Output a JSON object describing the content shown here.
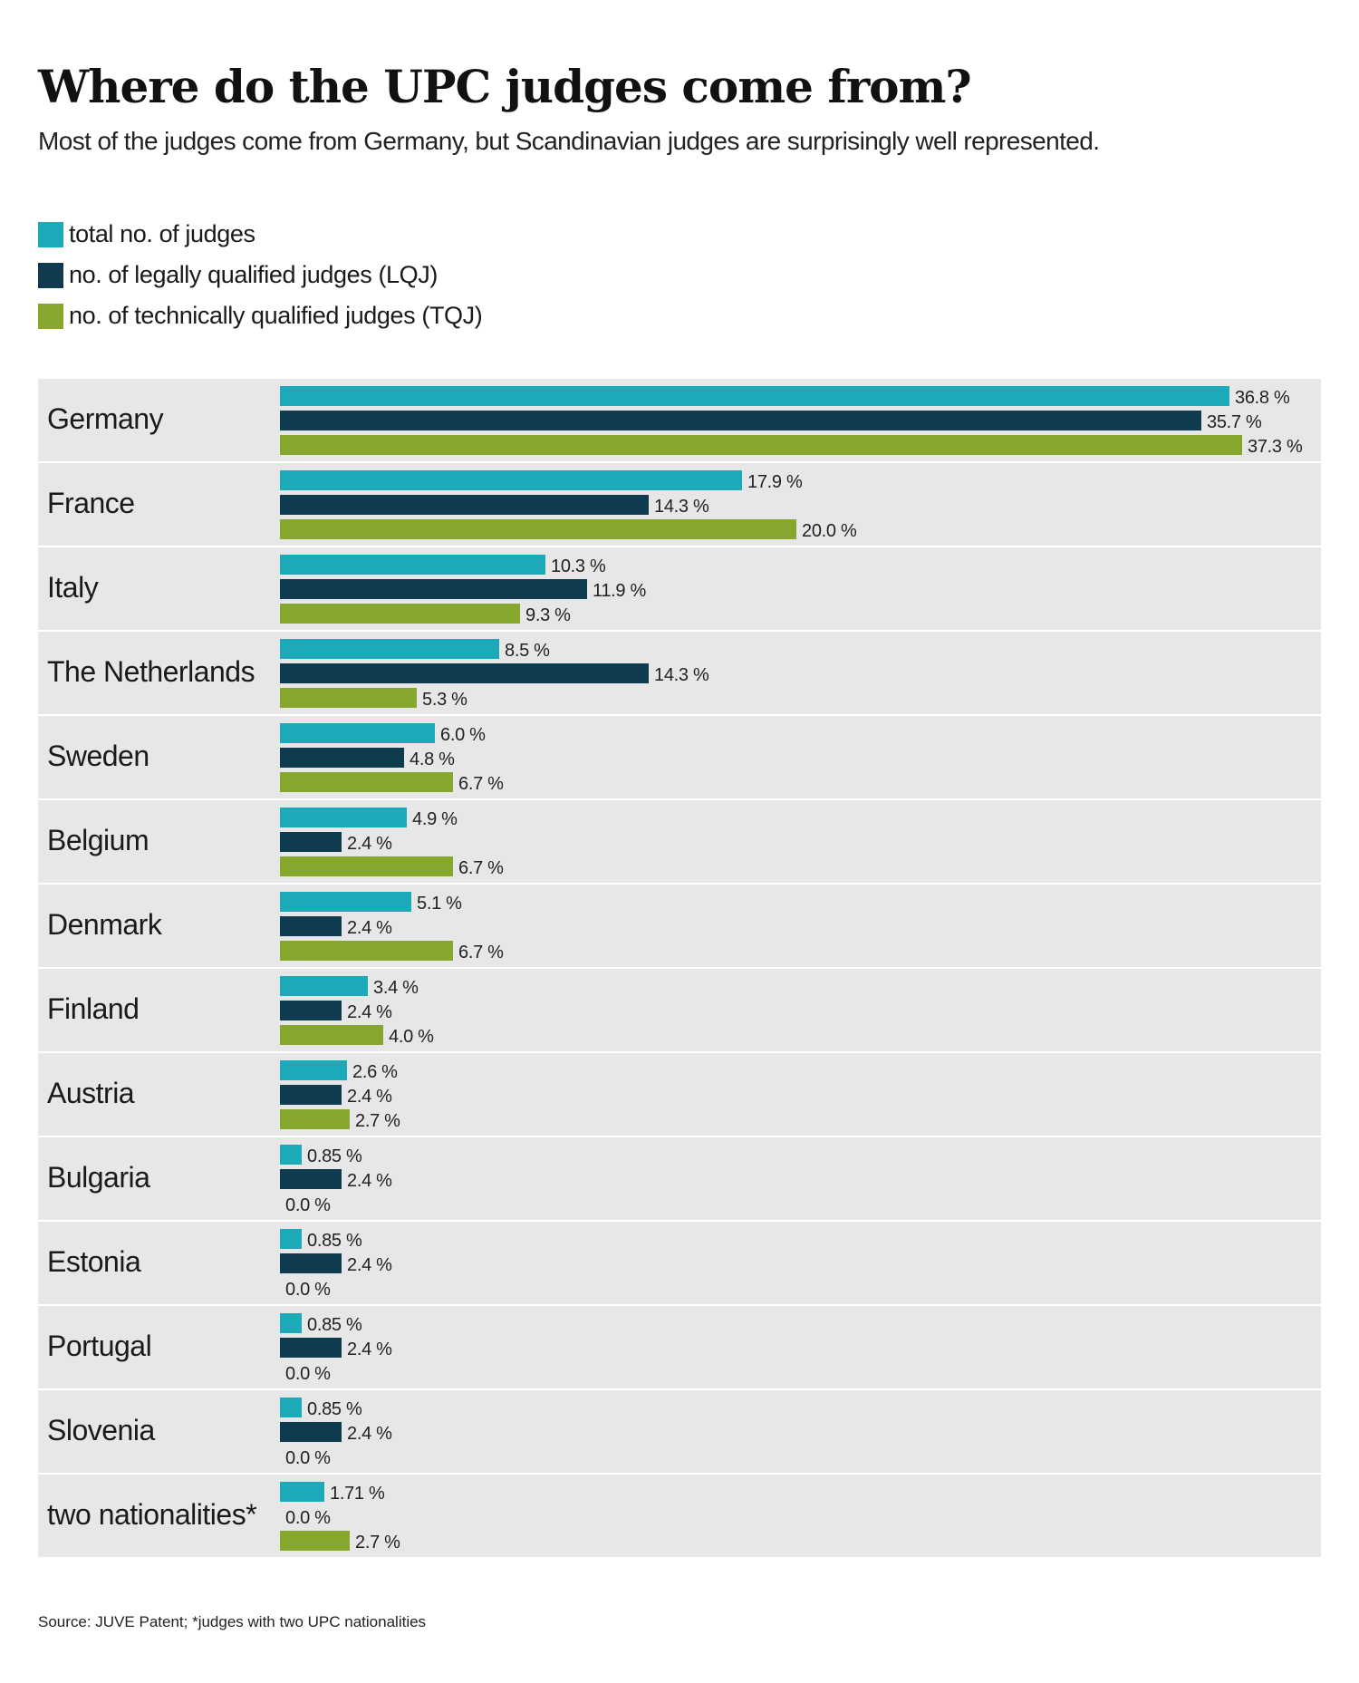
{
  "title": "Where do the UPC judges come from?",
  "subtitle": "Most of the judges come from Germany, but Scandinavian judges are surprisingly well represented.",
  "colors": {
    "total": "#1ca9b8",
    "lqj": "#0e3b4f",
    "tqj": "#86a72d",
    "row_bg": "#e7e7e7"
  },
  "legend": [
    {
      "key": "total",
      "label": "total no. of judges"
    },
    {
      "key": "lqj",
      "label": "no. of legally qualified judges (LQJ)"
    },
    {
      "key": "tqj",
      "label": "no. of technically qualified judges (TQJ)"
    }
  ],
  "source": "Source: JUVE Patent; *judges with two UPC nationalities",
  "chart_data": {
    "type": "bar",
    "orientation": "horizontal",
    "title": "Where do the UPC judges come from?",
    "xlim": [
      0,
      40
    ],
    "categories": [
      "Germany",
      "France",
      "Italy",
      "The Netherlands",
      "Sweden",
      "Belgium",
      "Denmark",
      "Finland",
      "Austria",
      "Bulgaria",
      "Estonia",
      "Portugal",
      "Slovenia",
      "two nationalities*"
    ],
    "series": [
      {
        "key": "total",
        "name": "total no. of judges",
        "values": [
          36.8,
          17.9,
          10.3,
          8.5,
          6.0,
          4.9,
          5.1,
          3.4,
          2.6,
          0.85,
          0.85,
          0.85,
          0.85,
          1.71
        ],
        "labels": [
          "36.8 %",
          "17.9 %",
          "10.3 %",
          "8.5 %",
          "6.0 %",
          "4.9 %",
          "5.1 %",
          "3.4 %",
          "2.6 %",
          "0.85 %",
          "0.85 %",
          "0.85 %",
          "0.85 %",
          "1.71 %"
        ]
      },
      {
        "key": "lqj",
        "name": "no. of legally qualified judges (LQJ)",
        "values": [
          35.7,
          14.3,
          11.9,
          14.3,
          4.8,
          2.4,
          2.4,
          2.4,
          2.4,
          2.4,
          2.4,
          2.4,
          2.4,
          0.0
        ],
        "labels": [
          "35.7 %",
          "14.3 %",
          "11.9 %",
          "14.3 %",
          "4.8 %",
          "2.4 %",
          "2.4 %",
          "2.4 %",
          "2.4 %",
          "2.4 %",
          "2.4 %",
          "2.4 %",
          "2.4 %",
          "0.0 %"
        ]
      },
      {
        "key": "tqj",
        "name": "no. of technically qualified judges (TQJ)",
        "values": [
          37.3,
          20.0,
          9.3,
          5.3,
          6.7,
          6.7,
          6.7,
          4.0,
          2.7,
          0.0,
          0.0,
          0.0,
          0.0,
          2.7
        ],
        "labels": [
          "37.3 %",
          "20.0 %",
          "9.3 %",
          "5.3 %",
          "6.7 %",
          "6.7 %",
          "6.7 %",
          "4.0 %",
          "2.7 %",
          "0.0 %",
          "0.0 %",
          "0.0 %",
          "0.0 %",
          "2.7 %"
        ]
      }
    ]
  }
}
